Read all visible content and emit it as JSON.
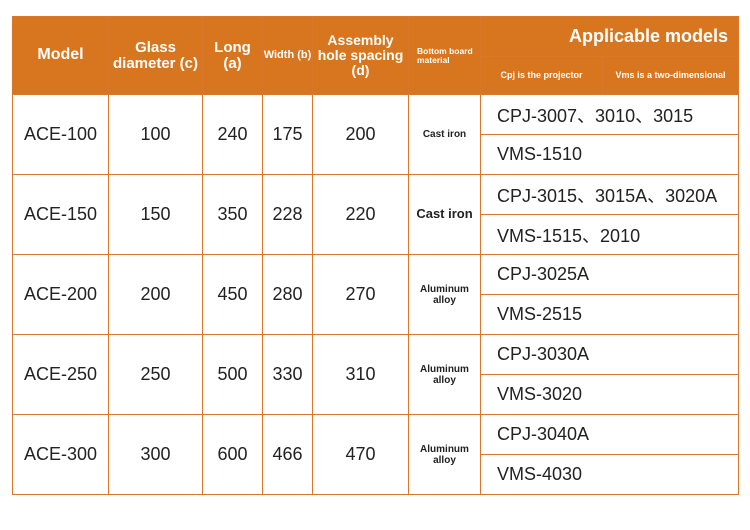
{
  "header": {
    "model": "Model",
    "glass_diameter": "Glass diameter (c)",
    "long": "Long (a)",
    "width": "Width (b)",
    "assembly": "Assembly hole spacing (d)",
    "bottom_material": "Bottom board material",
    "applicable_models": "Applicable models",
    "cpj_note": "Cpj is the projector",
    "vms_note": "Vms is a two-dimensional"
  },
  "rows": [
    {
      "model": "ACE-100",
      "glass": "100",
      "long": "240",
      "width": "175",
      "spacing": "200",
      "material": "Cast iron",
      "cpj": "CPJ-3007、3010、3015",
      "vms": "VMS-1510"
    },
    {
      "model": "ACE-150",
      "glass": "150",
      "long": "350",
      "width": "228",
      "spacing": "220",
      "material": "Cast iron",
      "cpj": "CPJ-3015、3015A、3020A",
      "vms": "VMS-1515、2010"
    },
    {
      "model": "ACE-200",
      "glass": "200",
      "long": "450",
      "width": "280",
      "spacing": "270",
      "material": "Aluminum alloy",
      "cpj": "CPJ-3025A",
      "vms": "VMS-2515"
    },
    {
      "model": "ACE-250",
      "glass": "250",
      "long": "500",
      "width": "330",
      "spacing": "310",
      "material": "Aluminum alloy",
      "cpj": "CPJ-3030A",
      "vms": "VMS-3020"
    },
    {
      "model": "ACE-300",
      "glass": "300",
      "long": "600",
      "width": "466",
      "spacing": "470",
      "material": "Aluminum alloy",
      "cpj": "CPJ-3040A",
      "vms": "VMS-4030"
    }
  ]
}
